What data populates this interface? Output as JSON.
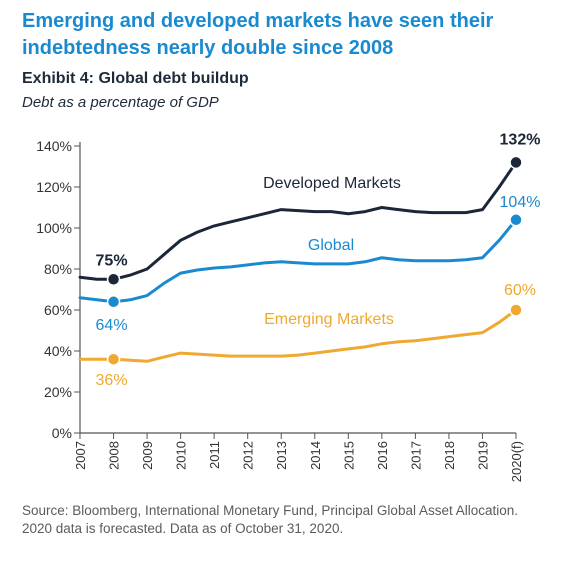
{
  "header": {
    "headline": "Emerging and developed markets have seen their indebtedness nearly double since 2008",
    "exhibit": "Exhibit 4: Global debt buildup",
    "subtitle": "Debt as a percentage of GDP"
  },
  "source": "Source: Bloomberg, International Monetary Fund, Principal Global Asset Allocation. 2020 data is forecasted.  Data as of October 31, 2020.",
  "colors": {
    "developed": "#1b2638",
    "global": "#1a8ad0",
    "emerging": "#f0a830",
    "axis": "#555555"
  },
  "chart_data": {
    "type": "line",
    "categories": [
      "2007",
      "2008",
      "2009",
      "2010",
      "2011",
      "2012",
      "2013",
      "2014",
      "2015",
      "2016",
      "2017",
      "2018",
      "2019",
      "2020(f)"
    ],
    "yticks": [
      "0%",
      "20%",
      "40%",
      "60%",
      "80%",
      "100%",
      "120%",
      "140%"
    ],
    "ylim": [
      0,
      140
    ],
    "series": [
      {
        "name": "Developed Markets",
        "key": "developed",
        "x": [
          2007,
          2007.5,
          2008,
          2008.5,
          2009,
          2009.5,
          2010,
          2010.5,
          2011,
          2011.5,
          2012,
          2012.5,
          2013,
          2013.5,
          2014,
          2014.5,
          2015,
          2015.5,
          2016,
          2016.5,
          2017,
          2017.5,
          2018,
          2018.5,
          2019,
          2019.5,
          2020
        ],
        "values": [
          76,
          75,
          75,
          77,
          80,
          87,
          94,
          98,
          101,
          103,
          105,
          107,
          109,
          108.5,
          108,
          108,
          107,
          108,
          110,
          109,
          108,
          107.5,
          107.5,
          107.5,
          109,
          120,
          132
        ]
      },
      {
        "name": "Global",
        "key": "global",
        "x": [
          2007,
          2007.5,
          2008,
          2008.5,
          2009,
          2009.5,
          2010,
          2010.5,
          2011,
          2011.5,
          2012,
          2012.5,
          2013,
          2013.5,
          2014,
          2014.5,
          2015,
          2015.5,
          2016,
          2016.5,
          2017,
          2017.5,
          2018,
          2018.5,
          2019,
          2019.5,
          2020
        ],
        "values": [
          66,
          65,
          64,
          65,
          67,
          73,
          78,
          79.5,
          80.5,
          81,
          82,
          83,
          83.5,
          83,
          82.5,
          82.5,
          82.5,
          83.5,
          85.5,
          84.5,
          84,
          84,
          84,
          84.5,
          85.5,
          94,
          104
        ]
      },
      {
        "name": "Emerging Markets",
        "key": "emerging",
        "x": [
          2007,
          2007.5,
          2008,
          2008.5,
          2009,
          2009.5,
          2010,
          2010.5,
          2011,
          2011.5,
          2012,
          2012.5,
          2013,
          2013.5,
          2014,
          2014.5,
          2015,
          2015.5,
          2016,
          2016.5,
          2017,
          2017.5,
          2018,
          2018.5,
          2019,
          2019.5,
          2020
        ],
        "values": [
          36,
          36,
          36,
          35.5,
          35,
          37,
          39,
          38.5,
          38,
          37.5,
          37.5,
          37.5,
          37.5,
          38,
          39,
          40,
          41,
          42,
          43.5,
          44.5,
          45,
          46,
          47,
          48,
          49,
          54,
          60
        ]
      }
    ],
    "annotations": [
      {
        "label": "75%",
        "series": "developed",
        "x": 2008,
        "value": 75
      },
      {
        "label": "132%",
        "series": "developed",
        "x": 2020,
        "value": 132
      },
      {
        "label": "64%",
        "series": "global",
        "x": 2008,
        "value": 64
      },
      {
        "label": "104%",
        "series": "global",
        "x": 2020,
        "value": 104
      },
      {
        "label": "36%",
        "series": "emerging",
        "x": 2008,
        "value": 36
      },
      {
        "label": "60%",
        "series": "emerging",
        "x": 2020,
        "value": 60
      }
    ]
  }
}
